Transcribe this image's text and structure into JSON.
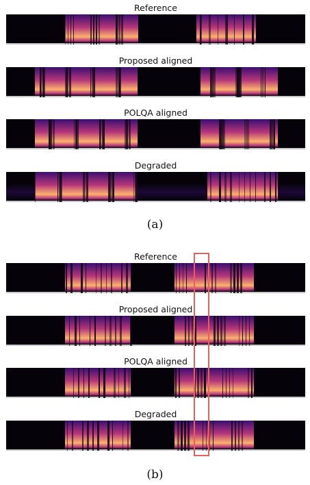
{
  "figure_a": {
    "panels": [
      {
        "title": "Reference"
      },
      {
        "title": "Proposed aligned"
      },
      {
        "title": "POLQA aligned"
      },
      {
        "title": "Degraded"
      }
    ],
    "caption": "(a)"
  },
  "figure_b": {
    "panels": [
      {
        "title": "Reference"
      },
      {
        "title": "Proposed aligned"
      },
      {
        "title": "POLQA aligned"
      },
      {
        "title": "Degraded"
      }
    ],
    "caption": "(b)"
  },
  "colors": {
    "background": "#050309",
    "spectrogram_low": "#3b0f70",
    "spectrogram_mid": "#b5367a",
    "spectrogram_high": "#fcb16d",
    "highlight_box": "#e8605a"
  }
}
